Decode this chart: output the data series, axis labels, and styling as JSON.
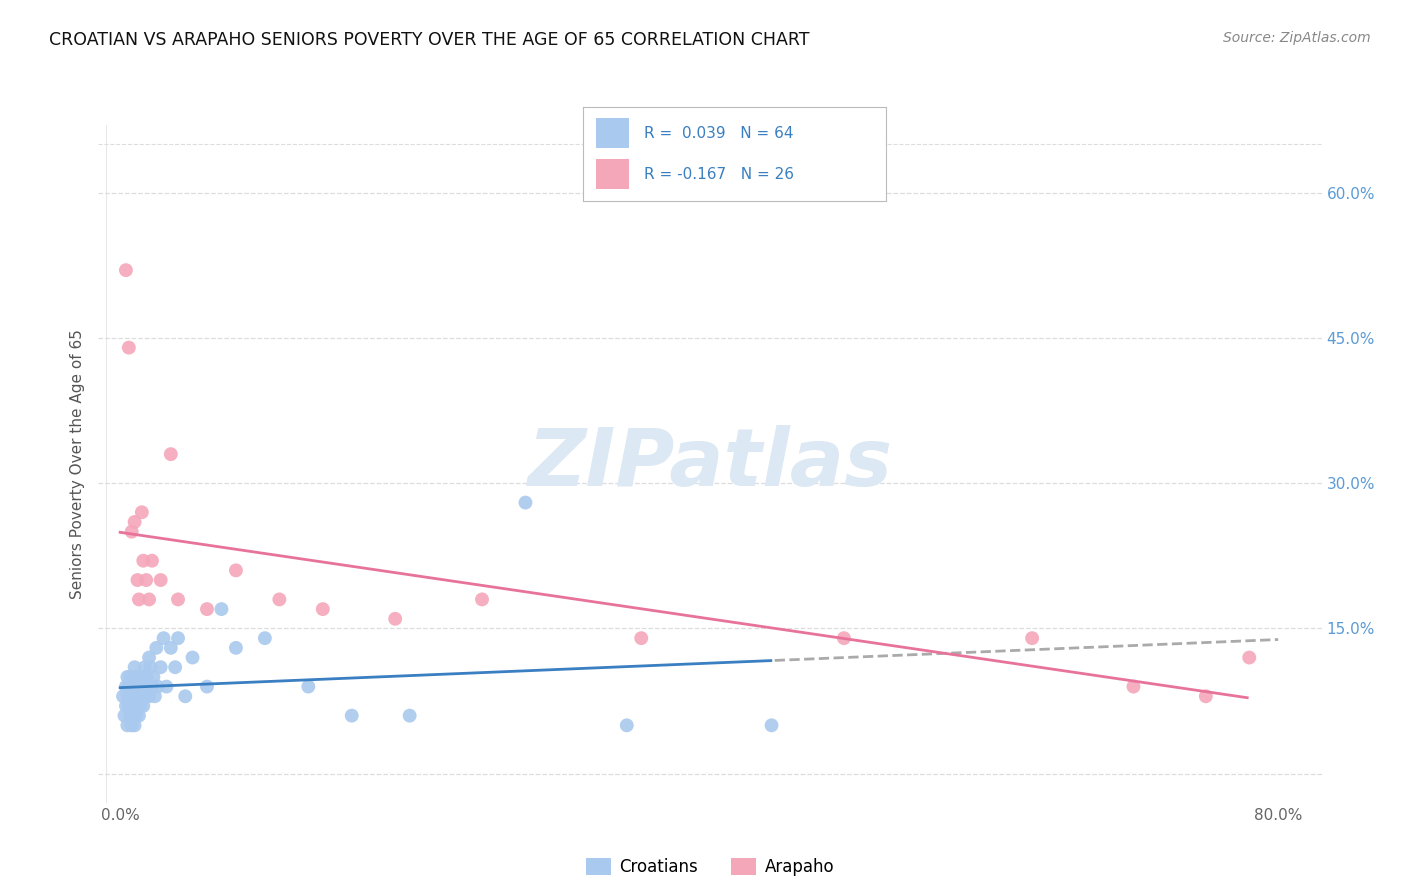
{
  "title": "CROATIAN VS ARAPAHO SENIORS POVERTY OVER THE AGE OF 65 CORRELATION CHART",
  "source": "Source: ZipAtlas.com",
  "ylabel": "Seniors Poverty Over the Age of 65",
  "xlabel_ticks": [
    "0.0%",
    "",
    "",
    "",
    "",
    "",
    "",
    "",
    "80.0%"
  ],
  "xlabel_vals": [
    0.0,
    0.1,
    0.2,
    0.3,
    0.4,
    0.5,
    0.6,
    0.7,
    0.8
  ],
  "ylim": [
    -0.03,
    0.67
  ],
  "xlim": [
    -0.015,
    0.83
  ],
  "ytick_vals": [
    0.0,
    0.15,
    0.3,
    0.45,
    0.6
  ],
  "right_ytick_vals": [
    0.15,
    0.3,
    0.45,
    0.6
  ],
  "right_ytick_labels": [
    "15.0%",
    "30.0%",
    "45.0%",
    "60.0%"
  ],
  "croatian_R": 0.039,
  "croatian_N": 64,
  "arapaho_R": -0.167,
  "arapaho_N": 26,
  "croatian_color": "#aac9ee",
  "arapaho_color": "#f4a7b9",
  "trendline_croatian_color": "#3a7fc1",
  "trendline_arapaho_color": "#e8739a",
  "trendline_dashed_color": "#aaaaaa",
  "watermark_color": "#dce8f3",
  "background_color": "#ffffff",
  "grid_color": "#dddddd",
  "croatian_x": [
    0.002,
    0.003,
    0.004,
    0.004,
    0.005,
    0.005,
    0.005,
    0.006,
    0.006,
    0.007,
    0.007,
    0.007,
    0.008,
    0.008,
    0.008,
    0.009,
    0.009,
    0.01,
    0.01,
    0.01,
    0.01,
    0.011,
    0.011,
    0.011,
    0.012,
    0.012,
    0.013,
    0.013,
    0.014,
    0.014,
    0.015,
    0.015,
    0.016,
    0.016,
    0.017,
    0.018,
    0.018,
    0.019,
    0.02,
    0.02,
    0.021,
    0.022,
    0.023,
    0.024,
    0.025,
    0.026,
    0.028,
    0.03,
    0.032,
    0.035,
    0.038,
    0.04,
    0.045,
    0.05,
    0.06,
    0.07,
    0.08,
    0.1,
    0.13,
    0.16,
    0.2,
    0.28,
    0.35,
    0.45
  ],
  "croatian_y": [
    0.08,
    0.06,
    0.09,
    0.07,
    0.05,
    0.08,
    0.1,
    0.07,
    0.09,
    0.06,
    0.08,
    0.1,
    0.07,
    0.09,
    0.05,
    0.08,
    0.06,
    0.05,
    0.07,
    0.09,
    0.11,
    0.08,
    0.06,
    0.1,
    0.07,
    0.09,
    0.08,
    0.06,
    0.07,
    0.09,
    0.1,
    0.08,
    0.09,
    0.07,
    0.11,
    0.08,
    0.1,
    0.09,
    0.12,
    0.08,
    0.11,
    0.09,
    0.1,
    0.08,
    0.13,
    0.09,
    0.11,
    0.14,
    0.09,
    0.13,
    0.11,
    0.14,
    0.08,
    0.12,
    0.09,
    0.17,
    0.13,
    0.14,
    0.09,
    0.06,
    0.06,
    0.28,
    0.05,
    0.05
  ],
  "arapaho_x": [
    0.004,
    0.006,
    0.008,
    0.01,
    0.012,
    0.013,
    0.015,
    0.016,
    0.018,
    0.02,
    0.022,
    0.028,
    0.035,
    0.04,
    0.06,
    0.08,
    0.11,
    0.14,
    0.19,
    0.25,
    0.36,
    0.5,
    0.63,
    0.7,
    0.75,
    0.78
  ],
  "arapaho_y": [
    0.52,
    0.44,
    0.25,
    0.26,
    0.2,
    0.18,
    0.27,
    0.22,
    0.2,
    0.18,
    0.22,
    0.2,
    0.33,
    0.18,
    0.17,
    0.21,
    0.18,
    0.17,
    0.16,
    0.18,
    0.14,
    0.14,
    0.14,
    0.09,
    0.08,
    0.12
  ],
  "legend_labels": [
    "Croatians",
    "Arapaho"
  ]
}
